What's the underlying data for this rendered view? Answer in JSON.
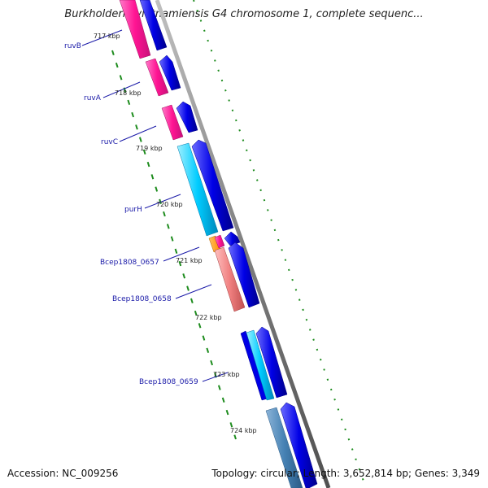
{
  "title": "Burkholderia vietnamiensis G4 chromosome 1, complete sequenc...",
  "footer": {
    "accession": "Accession: NC_009256",
    "summary": "Topology: circular; Length: 3,652,814 bp; Genes: 3,349"
  },
  "kbp_ticks": [
    "717 kbp",
    "718 kbp",
    "719 kbp",
    "720 kbp",
    "721 kbp",
    "722 kbp",
    "723 kbp",
    "724 kbp"
  ],
  "genes": [
    "ruvB",
    "ruvA",
    "ruvC",
    "purH",
    "Bcep1808_0657",
    "Bcep1808_0658",
    "Bcep1808_0659"
  ],
  "colors": {
    "backbone": "#808080",
    "cds_strand": "#0000e6",
    "ruv_genes": "#ff1493",
    "purH": "#00ccff",
    "bcep_0657": "#ff8c00",
    "bcep_0658": "#f08080",
    "bcep_0659": "#00e5ee",
    "tail_gene": "#4682b4",
    "tick_marks": "#1e8c1e",
    "label": "#1a1aa8"
  }
}
